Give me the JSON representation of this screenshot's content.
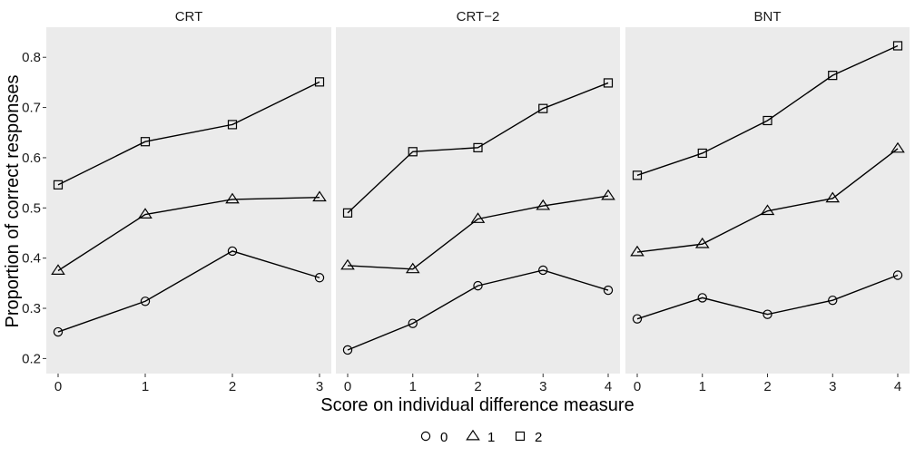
{
  "chart_data": {
    "type": "line",
    "xlabel": "Score on individual difference measure",
    "ylabel": "Proportion of correct responses",
    "ylim": [
      0.17,
      0.86
    ],
    "y_ticks": [
      0.2,
      0.3,
      0.4,
      0.5,
      0.6,
      0.7,
      0.8
    ],
    "y_tick_labels": [
      "0.2",
      "0.3",
      "0.4",
      "0.5",
      "0.6",
      "0.7",
      "0.8"
    ],
    "grid": false,
    "legend_position": "bottom",
    "legend": [
      {
        "label": "0",
        "marker": "circle"
      },
      {
        "label": "1",
        "marker": "triangle"
      },
      {
        "label": "2",
        "marker": "square"
      }
    ],
    "panels": [
      {
        "title": "CRT",
        "x": [
          0,
          1,
          2,
          3
        ],
        "x_tick_labels": [
          "0",
          "1",
          "2",
          "3"
        ],
        "series": [
          {
            "name": "0",
            "marker": "circle",
            "values": [
              0.253,
              0.314,
              0.414,
              0.361
            ]
          },
          {
            "name": "1",
            "marker": "triangle",
            "values": [
              0.375,
              0.487,
              0.517,
              0.521
            ]
          },
          {
            "name": "2",
            "marker": "square",
            "values": [
              0.546,
              0.632,
              0.666,
              0.751
            ]
          }
        ]
      },
      {
        "title": "CRT−2",
        "x": [
          0,
          1,
          2,
          3,
          4
        ],
        "x_tick_labels": [
          "0",
          "1",
          "2",
          "3",
          "4"
        ],
        "series": [
          {
            "name": "0",
            "marker": "circle",
            "values": [
              0.217,
              0.27,
              0.345,
              0.376,
              0.336
            ]
          },
          {
            "name": "1",
            "marker": "triangle",
            "values": [
              0.385,
              0.378,
              0.478,
              0.504,
              0.524
            ]
          },
          {
            "name": "2",
            "marker": "square",
            "values": [
              0.49,
              0.612,
              0.62,
              0.698,
              0.749
            ]
          }
        ]
      },
      {
        "title": "BNT",
        "x": [
          0,
          1,
          2,
          3,
          4
        ],
        "x_tick_labels": [
          "0",
          "1",
          "2",
          "3",
          "4"
        ],
        "series": [
          {
            "name": "0",
            "marker": "circle",
            "values": [
              0.279,
              0.321,
              0.288,
              0.316,
              0.366
            ]
          },
          {
            "name": "1",
            "marker": "triangle",
            "values": [
              0.412,
              0.428,
              0.494,
              0.519,
              0.618
            ]
          },
          {
            "name": "2",
            "marker": "square",
            "values": [
              0.565,
              0.609,
              0.674,
              0.764,
              0.823
            ]
          }
        ]
      }
    ]
  }
}
